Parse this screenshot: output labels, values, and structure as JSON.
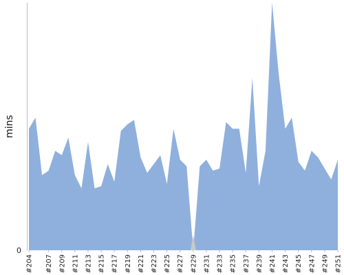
{
  "chart_data": {
    "type": "area",
    "title": "",
    "xlabel": "",
    "ylabel": "mins",
    "ylim": [
      0,
      112
    ],
    "y_ticks": [
      "0"
    ],
    "grid": false,
    "x": [
      "#204",
      "#205",
      "#206",
      "#207",
      "#208",
      "#209",
      "#210",
      "#211",
      "#212",
      "#213",
      "#214",
      "#215",
      "#216",
      "#217",
      "#218",
      "#219",
      "#220",
      "#221",
      "#222",
      "#223",
      "#224",
      "#225",
      "#226",
      "#227",
      "#228",
      "#229",
      "#230",
      "#231",
      "#232",
      "#233",
      "#234",
      "#235",
      "#236",
      "#237",
      "#238",
      "#239",
      "#240",
      "#241",
      "#242",
      "#243",
      "#244",
      "#245",
      "#246",
      "#247",
      "#248",
      "#249",
      "#250",
      "#251"
    ],
    "x_tick_labels": [
      "#204",
      "#207",
      "#209",
      "#211",
      "#213",
      "#215",
      "#217",
      "#219",
      "#221",
      "#223",
      "#225",
      "#227",
      "#229",
      "#231",
      "#233",
      "#235",
      "#237",
      "#239",
      "#241",
      "#243",
      "#245",
      "#247",
      "#249",
      "#251"
    ],
    "series": [
      {
        "values": [
          55,
          60,
          34,
          36,
          45,
          43,
          51,
          34,
          28,
          49,
          28,
          29,
          39,
          31,
          54,
          57,
          59,
          42,
          35,
          39,
          43,
          30,
          55,
          41,
          38,
          0,
          38,
          41,
          36,
          37,
          58,
          55,
          55,
          35,
          78,
          29,
          45,
          112,
          80,
          55,
          60,
          40,
          36,
          45,
          42,
          37,
          32,
          41
        ]
      }
    ],
    "colors": {
      "fill": "#8fb0dc",
      "dip": "#c8c8c8",
      "axis": "#bbbbbb"
    }
  }
}
